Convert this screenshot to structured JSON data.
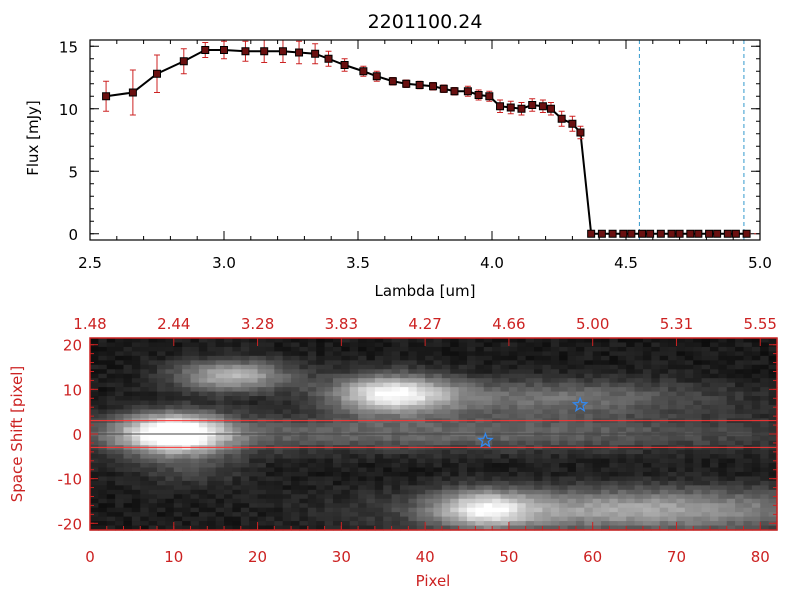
{
  "colors": {
    "black": "#000000",
    "red": "#cc2222",
    "marker": "#6a1010",
    "cyan": "#3399cc",
    "star": "#3388ee",
    "extraction_line": "#ff3333"
  },
  "chart_data": [
    {
      "type": "scatter",
      "title": "2201100.24",
      "xlabel": "Lambda [um]",
      "ylabel": "Flux [mJy]",
      "xlim": [
        2.5,
        5.0
      ],
      "ylim": [
        -0.5,
        15.5
      ],
      "x_ticks": [
        "2.5",
        "3.0",
        "3.5",
        "4.0",
        "4.5",
        "5.0"
      ],
      "x_tick_values": [
        2.5,
        3.0,
        3.5,
        4.0,
        4.5,
        5.0
      ],
      "y_ticks": [
        "0",
        "5",
        "10",
        "15"
      ],
      "y_tick_values": [
        0,
        5,
        10,
        15
      ],
      "vlines": [
        4.55,
        4.94
      ],
      "series": [
        {
          "name": "flux",
          "x": [
            2.56,
            2.66,
            2.75,
            2.85,
            2.93,
            3.0,
            3.08,
            3.15,
            3.22,
            3.28,
            3.34,
            3.39,
            3.45,
            3.52,
            3.57,
            3.63,
            3.68,
            3.73,
            3.78,
            3.82,
            3.86,
            3.91,
            3.95,
            3.99,
            4.03,
            4.07,
            4.11,
            4.15,
            4.19,
            4.22,
            4.26,
            4.3,
            4.33,
            4.37,
            4.41,
            4.45,
            4.49,
            4.52,
            4.56,
            4.59,
            4.63,
            4.67,
            4.7,
            4.74,
            4.77,
            4.81,
            4.84,
            4.88,
            4.91,
            4.95
          ],
          "y": [
            11.0,
            11.3,
            12.8,
            13.8,
            14.7,
            14.7,
            14.6,
            14.6,
            14.6,
            14.5,
            14.4,
            14.0,
            13.5,
            13.0,
            12.6,
            12.2,
            12.0,
            11.9,
            11.8,
            11.6,
            11.4,
            11.4,
            11.1,
            11.0,
            10.2,
            10.1,
            10.0,
            10.3,
            10.2,
            10.0,
            9.2,
            8.8,
            8.1,
            0.0,
            0.0,
            0.0,
            0.0,
            0.0,
            0.0,
            0.0,
            0.0,
            0.0,
            0.0,
            0.0,
            0.0,
            0.0,
            0.0,
            0.0,
            0.0,
            0.0
          ],
          "yerr": [
            1.2,
            1.8,
            1.5,
            1.0,
            0.6,
            0.7,
            0.8,
            0.9,
            0.9,
            0.9,
            0.8,
            0.6,
            0.5,
            0.4,
            0.4,
            0.3,
            0.3,
            0.3,
            0.3,
            0.3,
            0.3,
            0.4,
            0.4,
            0.4,
            0.5,
            0.5,
            0.5,
            0.5,
            0.5,
            0.5,
            0.6,
            0.6,
            0.5,
            0.1,
            0.1,
            0.1,
            0.1,
            0.1,
            0.1,
            0.1,
            0.1,
            0.1,
            0.1,
            0.1,
            0.1,
            0.1,
            0.1,
            0.1,
            0.1,
            0.1
          ]
        }
      ]
    },
    {
      "type": "heatmap",
      "xlabel": "Pixel",
      "ylabel": "Space Shift [pixel]",
      "xlim": [
        0,
        82
      ],
      "ylim": [
        -21.5,
        21.5
      ],
      "x_ticks": [
        "0",
        "10",
        "20",
        "30",
        "40",
        "50",
        "60",
        "70",
        "80"
      ],
      "x_tick_values": [
        0,
        10,
        20,
        30,
        40,
        50,
        60,
        70,
        80
      ],
      "y_ticks": [
        "-20",
        "-10",
        "0",
        "10",
        "20"
      ],
      "y_tick_values": [
        -20,
        -10,
        0,
        10,
        20
      ],
      "top_axis_ticks": [
        "1.48",
        "2.44",
        "3.28",
        "3.83",
        "4.27",
        "4.66",
        "5.00",
        "5.31",
        "5.55"
      ],
      "top_axis_values": [
        0,
        10,
        20,
        30,
        40,
        50,
        60,
        70,
        80
      ],
      "hlines": [
        3,
        -3,
        0
      ],
      "markers": [
        {
          "name": "star-1",
          "x": 47.2,
          "y": -1.5
        },
        {
          "name": "star-2",
          "x": 58.5,
          "y": 6.5
        }
      ],
      "sources": [
        {
          "cx": 10,
          "cy": 0,
          "sx": 4.5,
          "sy": 3.2,
          "amp": 1.0
        },
        {
          "cx": 40,
          "cy": 0,
          "sx": 35,
          "sy": 2.8,
          "amp": 0.3
        },
        {
          "cx": 17,
          "cy": 13,
          "sx": 5,
          "sy": 2.5,
          "amp": 0.6
        },
        {
          "cx": 36,
          "cy": 9,
          "sx": 5,
          "sy": 3,
          "amp": 0.8
        },
        {
          "cx": 55,
          "cy": 8,
          "sx": 14,
          "sy": 3,
          "amp": 0.35
        },
        {
          "cx": 65,
          "cy": -17,
          "sx": 18,
          "sy": 3.5,
          "amp": 0.55
        },
        {
          "cx": 47,
          "cy": -17,
          "sx": 4,
          "sy": 3,
          "amp": 0.6
        },
        {
          "cx": 12,
          "cy": -8,
          "sx": 5,
          "sy": 3,
          "amp": 0.15
        }
      ]
    }
  ]
}
